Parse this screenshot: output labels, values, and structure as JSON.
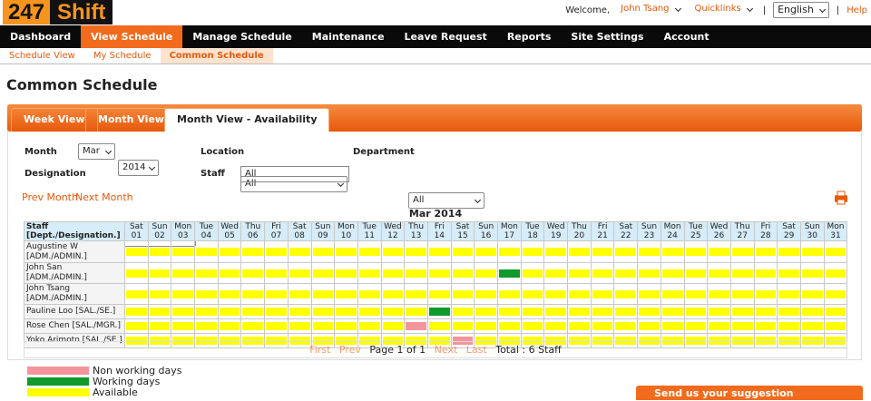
{
  "header": {
    "logo_a": "247",
    "logo_b": "Shift",
    "welcome": "Welcome,",
    "user": "John Tsang",
    "quicklinks": "Quicklinks",
    "sep": "|",
    "language": "English",
    "help": "Help"
  },
  "nav": [
    "Dashboard",
    "View Schedule",
    "Manage Schedule",
    "Maintenance",
    "Leave Request",
    "Reports",
    "Site Settings",
    "Account"
  ],
  "subnav": [
    "Schedule View",
    "My Schedule",
    "Common Schedule"
  ],
  "page_title": "Common Schedule",
  "tabs": [
    "Week View",
    "Month View",
    "Month View - Availability"
  ],
  "form": {
    "month_label": "Month",
    "month": "Mar",
    "year": "2014",
    "location_label": "Location",
    "location": "All",
    "department_label": "Department",
    "department": "All",
    "designation_label": "Designation",
    "designation": "All",
    "staff_label": "Staff",
    "staff": "All"
  },
  "prev_month": "Prev Month",
  "next_month": "Next Month",
  "calendar": {
    "title": "Mar 2014",
    "staff_header": "Staff [Dept./Designation.]",
    "days": [
      {
        "dow": "Sat",
        "day": "01"
      },
      {
        "dow": "Sun",
        "day": "02"
      },
      {
        "dow": "Mon",
        "day": "03"
      },
      {
        "dow": "Tue",
        "day": "04"
      },
      {
        "dow": "Wed",
        "day": "05"
      },
      {
        "dow": "Thu",
        "day": "06"
      },
      {
        "dow": "Fri",
        "day": "07"
      },
      {
        "dow": "Sat",
        "day": "08"
      },
      {
        "dow": "Sun",
        "day": "09"
      },
      {
        "dow": "Mon",
        "day": "10"
      },
      {
        "dow": "Tue",
        "day": "11"
      },
      {
        "dow": "Wed",
        "day": "12"
      },
      {
        "dow": "Thu",
        "day": "13"
      },
      {
        "dow": "Fri",
        "day": "14"
      },
      {
        "dow": "Sat",
        "day": "15"
      },
      {
        "dow": "Sun",
        "day": "16"
      },
      {
        "dow": "Mon",
        "day": "17"
      },
      {
        "dow": "Tue",
        "day": "18"
      },
      {
        "dow": "Wed",
        "day": "19"
      },
      {
        "dow": "Thu",
        "day": "20"
      },
      {
        "dow": "Fri",
        "day": "21"
      },
      {
        "dow": "Sat",
        "day": "22"
      },
      {
        "dow": "Sun",
        "day": "23"
      },
      {
        "dow": "Mon",
        "day": "24"
      },
      {
        "dow": "Tue",
        "day": "25"
      },
      {
        "dow": "Wed",
        "day": "26"
      },
      {
        "dow": "Thu",
        "day": "27"
      },
      {
        "dow": "Fri",
        "day": "28"
      },
      {
        "dow": "Sat",
        "day": "29"
      },
      {
        "dow": "Sun",
        "day": "30"
      },
      {
        "dow": "Mon",
        "day": "31"
      }
    ],
    "rows": [
      {
        "name": "Augustine W [ADM./ADMIN.]",
        "cells": [
          "Available",
          "Available",
          "Available",
          "Available",
          "Available",
          "Available",
          "Available",
          "Available",
          "Available",
          "Available",
          "Available",
          "Available",
          "Available",
          "Available",
          "Available",
          "Available",
          "Available",
          "Available",
          "Available",
          "Available",
          "Available",
          "Available",
          "Available",
          "Available",
          "Available",
          "Available",
          "Available",
          "Available",
          "Available",
          "Available",
          "Available"
        ]
      },
      {
        "name": "John San [ADM./ADMIN.]",
        "cells": [
          "Available",
          "Available",
          "Available",
          "Available",
          "Available",
          "Available",
          "Available",
          "Available",
          "Available",
          "Available",
          "Available",
          "Available",
          "Available",
          "Available",
          "Available",
          "Available",
          "Working days",
          "Available",
          "Available",
          "Available",
          "Available",
          "Available",
          "Available",
          "Available",
          "Available",
          "Available",
          "Available",
          "Available",
          "Available",
          "Available",
          "Available"
        ]
      },
      {
        "name": "John Tsang [ADM./ADMIN.]",
        "cells": [
          "Available",
          "Available",
          "Available",
          "Available",
          "Available",
          "Available",
          "Available",
          "Available",
          "Available",
          "Available",
          "Available",
          "Available",
          "Available",
          "Available",
          "Available",
          "Available",
          "Available",
          "Available",
          "Available",
          "Available",
          "Available",
          "Available",
          "Available",
          "Available",
          "Available",
          "Available",
          "Available",
          "Available",
          "Available",
          "Available",
          "Available"
        ]
      },
      {
        "name": "Pauline Loo [SAL./SE.]",
        "cells": [
          "Available",
          "Available",
          "Available",
          "Available",
          "Available",
          "Available",
          "Available",
          "Available",
          "Available",
          "Available",
          "Available",
          "Available",
          "Available",
          "Working days",
          "Available",
          "Available",
          "Available",
          "Available",
          "Available",
          "Available",
          "Available",
          "Available",
          "Available",
          "Available",
          "Available",
          "Available",
          "Available",
          "Available",
          "Available",
          "Available",
          "Available"
        ]
      },
      {
        "name": "Rose Chen [SAL./MGR.]",
        "cells": [
          "Available",
          "Available",
          "Available",
          "Available",
          "Available",
          "Available",
          "Available",
          "Available",
          "Available",
          "Available",
          "Available",
          "Available",
          "Non working days",
          "Available",
          "Available",
          "Available",
          "Available",
          "Available",
          "Available",
          "Available",
          "Available",
          "Available",
          "Available",
          "Available",
          "Available",
          "Available",
          "Available",
          "Available",
          "Available",
          "Available",
          "Available"
        ]
      },
      {
        "name": "Yoko Arimoto [SAL./SE.]",
        "cells": [
          "Available",
          "Available",
          "Available",
          "Available",
          "Available",
          "Available",
          "Available",
          "Available",
          "Available",
          "Available",
          "Available",
          "Available",
          "Available",
          "Available",
          "Non working days",
          "Available",
          "Available",
          "Available",
          "Available",
          "Available",
          "Available",
          "Available",
          "Available",
          "Available",
          "Available",
          "Available",
          "Available",
          "Available",
          "Available",
          "Available",
          "Available"
        ]
      }
    ]
  },
  "pager": {
    "first": "First",
    "prev": "Prev",
    "page": "Page 1 of 1",
    "next": "Next",
    "last": "Last",
    "total": "Total : 6 Staff"
  },
  "legend": [
    {
      "label": "Non working days",
      "color": "#f4949c"
    },
    {
      "label": "Working days",
      "color": "#109a2c"
    },
    {
      "label": "Available",
      "color": "#ffff00"
    }
  ],
  "suggestion": "Send us your suggestion"
}
